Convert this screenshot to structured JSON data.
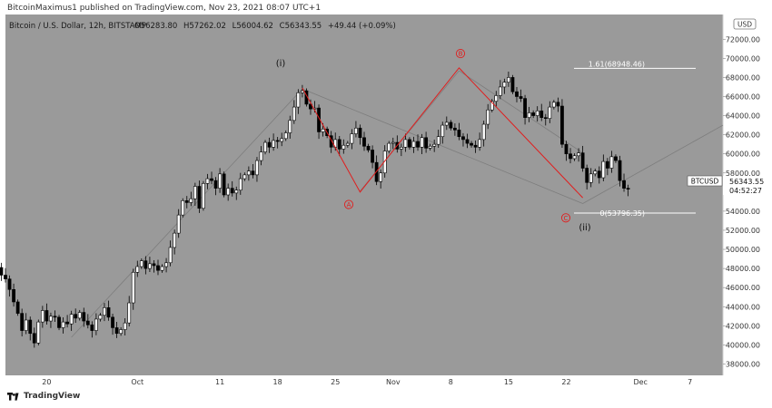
{
  "header": {
    "text": "BitcoinMaximus1 published on TradingView.com, Nov 23, 2021 08:07 UTC+1"
  },
  "legend": {
    "symbol": "Bitcoin / U.S. Dollar, 12h, BITSTAMP",
    "o_label": "O",
    "o_value": "56283.80",
    "h_label": "H",
    "h_value": "57262.02",
    "l_label": "L",
    "l_value": "56004.62",
    "c_label": "C",
    "c_value": "56343.55",
    "change": "+49.44 (+0.09%)"
  },
  "currency": "USD",
  "price_tag": {
    "symbol": "BTCUSD",
    "price": "56343.55",
    "countdown": "04:52:27"
  },
  "fib_labels": {
    "upper": "1.61(68948.46)",
    "lower": "0(53796.35)"
  },
  "wave_labels": {
    "i": "(i)",
    "ii": "(ii)",
    "A": "A",
    "B": "B",
    "C": "C"
  },
  "footer": {
    "brand": "TradingView"
  },
  "colors": {
    "background": "#9a9a9a",
    "up": "#ffffff",
    "down": "#000000",
    "abc": "#e11d1d",
    "channel": "#7d7d7d",
    "fib": "#ffffff"
  },
  "chart_data": {
    "type": "candlestick",
    "title": "Bitcoin / U.S. Dollar, 12h, BITSTAMP",
    "ylim": [
      37000,
      72500
    ],
    "xlim": [
      "2021-09-15",
      "2021-12-11"
    ],
    "y_ticks": [
      "38000.00",
      "40000.00",
      "42000.00",
      "44000.00",
      "46000.00",
      "48000.00",
      "50000.00",
      "52000.00",
      "54000.00",
      "56000.00",
      "58000.00",
      "60000.00",
      "62000.00",
      "64000.00",
      "66000.00",
      "68000.00",
      "70000.00",
      "72000.00"
    ],
    "x_ticks": [
      {
        "date": "2021-09-20",
        "label": "20"
      },
      {
        "date": "2021-10-01",
        "label": "Oct"
      },
      {
        "date": "2021-10-11",
        "label": "11"
      },
      {
        "date": "2021-10-18",
        "label": "18"
      },
      {
        "date": "2021-10-25",
        "label": "25"
      },
      {
        "date": "2021-11-01",
        "label": "Nov"
      },
      {
        "date": "2021-11-08",
        "label": "8"
      },
      {
        "date": "2021-11-15",
        "label": "15"
      },
      {
        "date": "2021-11-22",
        "label": "22"
      },
      {
        "date": "2021-12-01",
        "label": "Dec"
      },
      {
        "date": "2021-12-07",
        "label": "7"
      }
    ],
    "candle_series": {
      "start_date": "2021-09-14",
      "interval_days": 0.5,
      "close": [
        48100,
        47300,
        46900,
        45800,
        44500,
        43300,
        41500,
        42600,
        41200,
        40200,
        42400,
        43600,
        42500,
        43000,
        42900,
        41800,
        42400,
        42200,
        43200,
        42800,
        43400,
        42500,
        42100,
        41500,
        42700,
        43100,
        43900,
        42900,
        41800,
        41200,
        41600,
        42300,
        44400,
        47600,
        48200,
        48800,
        48000,
        48500,
        48300,
        47800,
        48200,
        48600,
        50200,
        51700,
        53600,
        55100,
        54900,
        55300,
        56600,
        54300,
        56900,
        57400,
        57200,
        56400,
        57900,
        55700,
        56400,
        55900,
        56200,
        57400,
        57800,
        58200,
        57800,
        59300,
        60200,
        61200,
        60700,
        61400,
        61300,
        61600,
        62200,
        63500,
        64900,
        66400,
        66600,
        65200,
        64700,
        64800,
        62300,
        62600,
        61900,
        60700,
        61500,
        60500,
        60900,
        61100,
        62100,
        62700,
        61700,
        60800,
        60400,
        59100,
        57100,
        58000,
        60300,
        61100,
        61200,
        60500,
        60700,
        61500,
        60700,
        61300,
        60700,
        61700,
        60600,
        60800,
        61000,
        61800,
        63000,
        63300,
        62700,
        62500,
        61800,
        61500,
        61100,
        60900,
        60700,
        61500,
        63100,
        64600,
        65500,
        66100,
        67000,
        67500,
        68000,
        66500,
        66000,
        65800,
        63800,
        64300,
        64000,
        64500,
        63800,
        63700,
        64900,
        65400,
        65000,
        61000,
        60000,
        59500,
        59800,
        60100,
        58500,
        57000,
        57900,
        58200,
        57500,
        59200,
        58500,
        59700,
        59300,
        57200,
        56400,
        56300
      ]
    },
    "channel_lines": [
      {
        "from": {
          "date": "2021-09-23",
          "price": 40800
        },
        "to": {
          "date": "2021-10-21",
          "price": 66800
        }
      },
      {
        "from": {
          "date": "2021-10-21",
          "price": 66800
        },
        "to": {
          "date": "2021-11-24",
          "price": 54800
        }
      },
      {
        "from": {
          "date": "2021-11-24",
          "price": 54800
        },
        "to": {
          "date": "2021-12-11",
          "price": 63000
        }
      },
      {
        "from": {
          "date": "2021-10-28",
          "price": 56100
        },
        "to": {
          "date": "2021-11-09",
          "price": 68700
        }
      },
      {
        "from": {
          "date": "2021-11-09",
          "price": 68700
        },
        "to": {
          "date": "2021-11-24",
          "price": 60100
        }
      }
    ],
    "abc_path": [
      {
        "date": "2021-10-21",
        "price": 66900
      },
      {
        "date": "2021-10-28",
        "price": 56000
      },
      {
        "date": "2021-11-09",
        "price": 69000
      },
      {
        "date": "2021-11-24",
        "price": 55400
      }
    ],
    "fib_levels": [
      {
        "ratio": "1.61",
        "price": 68948.46
      },
      {
        "ratio": "0",
        "price": 53796.35
      }
    ]
  }
}
